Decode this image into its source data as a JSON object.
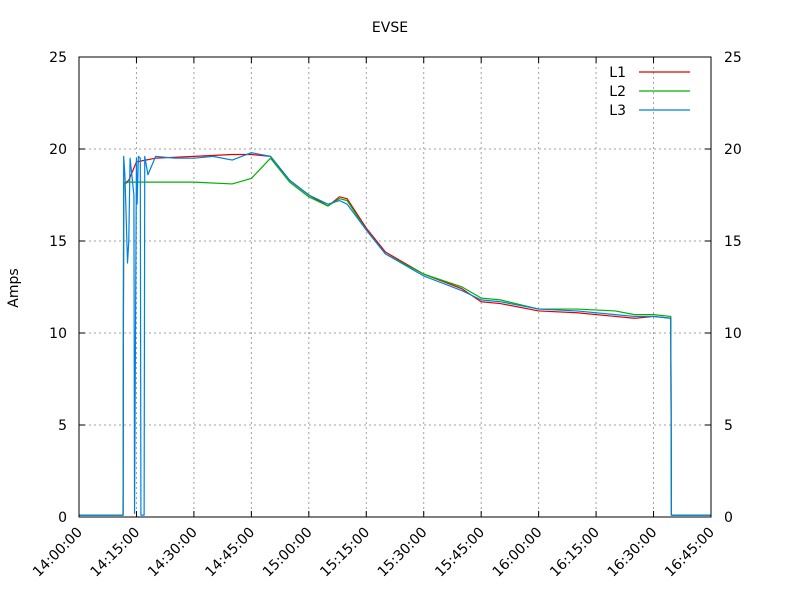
{
  "chart_data": {
    "type": "line",
    "title": "EVSE",
    "xlabel": "",
    "ylabel": "Amps",
    "xlim": [
      "14:00:00",
      "16:45:00"
    ],
    "ylim": [
      0,
      25
    ],
    "x_ticks": [
      "14:00:00",
      "14:15:00",
      "14:30:00",
      "14:45:00",
      "15:00:00",
      "15:15:00",
      "15:30:00",
      "15:45:00",
      "16:00:00",
      "16:15:00",
      "16:30:00",
      "16:45:00"
    ],
    "y_ticks": [
      0,
      5,
      10,
      15,
      20,
      25
    ],
    "y2_ticks": [
      0,
      5,
      10,
      15,
      20,
      25
    ],
    "grid": true,
    "legend_position": "top-right",
    "series": [
      {
        "name": "L1",
        "color": "#e00000",
        "x": [
          "14:00:00",
          "14:11:30",
          "14:11:40",
          "14:13:00",
          "14:15:00",
          "14:20:00",
          "14:30:00",
          "14:40:00",
          "14:45:00",
          "14:50:00",
          "14:55:00",
          "15:00:00",
          "15:05:00",
          "15:08:00",
          "15:10:00",
          "15:15:00",
          "15:20:00",
          "15:30:00",
          "15:40:00",
          "15:45:00",
          "15:50:00",
          "16:00:00",
          "16:10:00",
          "16:20:00",
          "16:25:00",
          "16:30:00",
          "16:34:30",
          "16:34:40",
          "16:45:00"
        ],
        "y": [
          0.1,
          0.1,
          18.1,
          18.3,
          19.3,
          19.5,
          19.6,
          19.7,
          19.7,
          19.6,
          18.3,
          17.5,
          16.9,
          17.4,
          17.3,
          15.7,
          14.4,
          13.2,
          12.4,
          11.7,
          11.6,
          11.2,
          11.1,
          10.9,
          10.8,
          10.9,
          10.8,
          0.1,
          0.1
        ]
      },
      {
        "name": "L2",
        "color": "#00b000",
        "x": [
          "14:00:00",
          "14:11:30",
          "14:11:40",
          "14:13:00",
          "14:15:00",
          "14:20:00",
          "14:30:00",
          "14:40:00",
          "14:45:00",
          "14:50:00",
          "14:55:00",
          "15:00:00",
          "15:05:00",
          "15:08:00",
          "15:10:00",
          "15:15:00",
          "15:20:00",
          "15:30:00",
          "15:40:00",
          "15:45:00",
          "15:50:00",
          "16:00:00",
          "16:10:00",
          "16:20:00",
          "16:25:00",
          "16:30:00",
          "16:34:30",
          "16:34:40",
          "16:45:00"
        ],
        "y": [
          0.1,
          0.1,
          18.1,
          18.2,
          18.2,
          18.2,
          18.2,
          18.1,
          18.4,
          19.5,
          18.2,
          17.4,
          16.9,
          17.3,
          17.2,
          15.6,
          14.3,
          13.2,
          12.5,
          11.9,
          11.8,
          11.3,
          11.3,
          11.2,
          11.0,
          11.0,
          10.9,
          0.1,
          0.1
        ]
      },
      {
        "name": "L3",
        "color": "#0080e0",
        "x": [
          "14:00:00",
          "14:11:30",
          "14:11:40",
          "14:12:00",
          "14:12:40",
          "14:13:00",
          "14:13:20",
          "14:14:20",
          "14:14:30",
          "14:15:00",
          "14:15:10",
          "14:15:30",
          "14:16:00",
          "14:16:10",
          "14:17:00",
          "14:17:10",
          "14:18:00",
          "14:20:00",
          "14:25:00",
          "14:30:00",
          "14:35:00",
          "14:40:00",
          "14:45:00",
          "14:50:00",
          "14:55:00",
          "15:00:00",
          "15:05:00",
          "15:08:00",
          "15:10:00",
          "15:15:00",
          "15:20:00",
          "15:30:00",
          "15:40:00",
          "15:45:00",
          "15:50:00",
          "16:00:00",
          "16:10:00",
          "16:20:00",
          "16:25:00",
          "16:30:00",
          "16:34:30",
          "16:34:40",
          "16:45:00"
        ],
        "y": [
          0.1,
          0.1,
          19.6,
          18.5,
          13.8,
          15.0,
          19.5,
          17.5,
          0.2,
          19.5,
          17.0,
          19.6,
          19.5,
          0.1,
          0.1,
          19.6,
          18.6,
          19.6,
          19.5,
          19.5,
          19.6,
          19.4,
          19.8,
          19.6,
          18.3,
          17.5,
          17.0,
          17.2,
          17.0,
          15.6,
          14.3,
          13.1,
          12.3,
          11.8,
          11.7,
          11.3,
          11.2,
          11.0,
          10.9,
          10.9,
          10.8,
          0.1,
          0.1
        ]
      }
    ]
  }
}
